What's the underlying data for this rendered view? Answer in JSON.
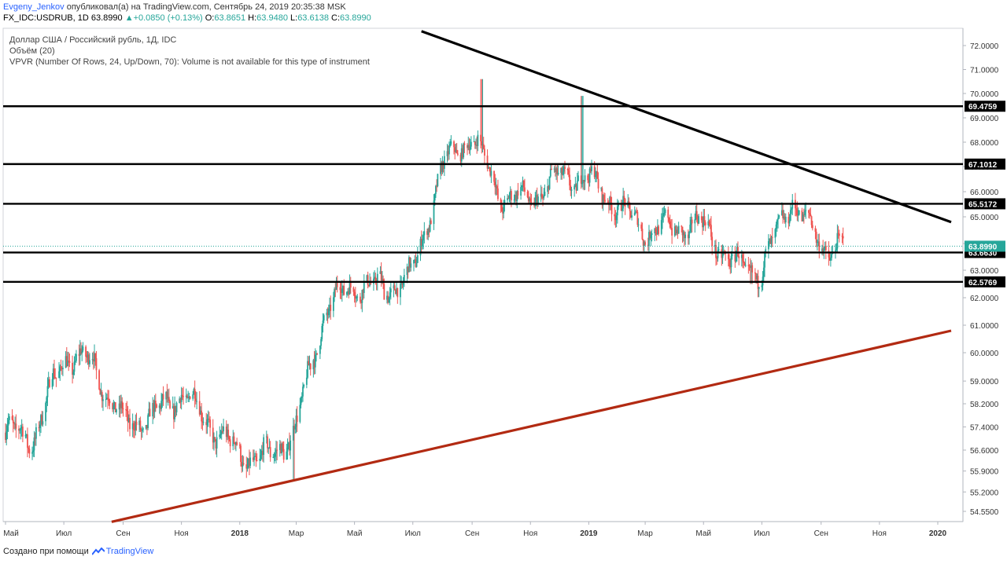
{
  "header": {
    "author": "Evgeny_Jenkov",
    "published": " опубликовал(а) на TradingView.com, Сентябрь 24, 2019 20:35:38 MSK",
    "symbol": "FX_IDC:USDRUB, 1D",
    "last": "63.8990",
    "change_arrow": "▲",
    "change": "+0.0850 (+0.13%)",
    "o_label": "O:",
    "o": "63.8651",
    "h_label": "H:",
    "h": "63.9480",
    "l_label": "L:",
    "l": "63.6138",
    "c_label": "C:",
    "c": "63.8990"
  },
  "legend": {
    "title": "Доллар США / Российский рубль, 1Д, IDC",
    "volume": "Объём (20)",
    "vpvr": "VPVR (Number Of Rows, 24, Up/Down, 70): Volume is not available for this type of instrument"
  },
  "footer": {
    "made_with": "Создано при помощи",
    "brand": "TradingView"
  },
  "colors": {
    "up": "#26a69a",
    "down": "#ef5350",
    "trendline_dark": "#000000",
    "trendline_red": "#b22a12",
    "last_price_line": "#26a69a",
    "axis_text": "#333333"
  },
  "chart_data": {
    "type": "candlestick",
    "y_axis_ticks": [
      "72.0000",
      "71.0000",
      "70.0000",
      "69.0000",
      "68.0000",
      "67.0000",
      "66.0000",
      "65.0000",
      "64.0000",
      "63.0000",
      "62.0000",
      "61.0000",
      "60.0000",
      "59.0000",
      "58.2000",
      "57.4000",
      "56.6000",
      "55.9000",
      "55.2000",
      "54.5500"
    ],
    "ylim": [
      54.2,
      72.6
    ],
    "x_axis_labels": [
      "Май",
      "Июл",
      "Сен",
      "Ноя",
      "2018",
      "Мар",
      "Май",
      "Июл",
      "Сен",
      "Ноя",
      "2019",
      "Мар",
      "Май",
      "Июл",
      "Сен",
      "Ноя",
      "2020"
    ],
    "x_range": [
      "2017-05",
      "2020-01"
    ],
    "series_path": [
      [
        "2017-05",
        57.2
      ],
      [
        "2017-06",
        57.1
      ],
      [
        "2017-07",
        59.9
      ],
      [
        "2017-08",
        59.6
      ],
      [
        "2017-09",
        57.5
      ],
      [
        "2017-10",
        57.7
      ],
      [
        "2017-11",
        58.6
      ],
      [
        "2017-12",
        57.5
      ],
      [
        "2018-01",
        56.4
      ],
      [
        "2018-02",
        56.3
      ],
      [
        "2018-03",
        57.4
      ],
      [
        "2018-04",
        61.6
      ],
      [
        "2018-05",
        62.5
      ],
      [
        "2018-06",
        62.3
      ],
      [
        "2018-07",
        62.8
      ],
      [
        "2018-08",
        67.0
      ],
      [
        "2018-09",
        68.3
      ],
      [
        "2018-10",
        65.8
      ],
      [
        "2018-11",
        65.7
      ],
      [
        "2018-12",
        66.6
      ],
      [
        "2019-01",
        66.5
      ],
      [
        "2019-02",
        65.4
      ],
      [
        "2019-03",
        64.5
      ],
      [
        "2019-04",
        64.6
      ],
      [
        "2019-05",
        64.7
      ],
      [
        "2019-06",
        63.2
      ],
      [
        "2019-07",
        63.0
      ],
      [
        "2019-08",
        65.7
      ],
      [
        "2019-09",
        63.9
      ]
    ],
    "extremes": [
      {
        "date": "2018-09-11",
        "high": 70.6
      },
      {
        "date": "2018-12-25",
        "high": 69.9
      },
      {
        "date": "2018-02-26",
        "low": 55.6
      },
      {
        "date": "2019-06-20",
        "low": 62.5
      }
    ],
    "horizontal_levels": [
      {
        "value": 69.4759,
        "label": "69.4759"
      },
      {
        "value": 67.1012,
        "label": "67.1012"
      },
      {
        "value": 65.5172,
        "label": "65.5172"
      },
      {
        "value": 63.663,
        "label": "63.6630"
      },
      {
        "value": 62.5769,
        "label": "62.5769"
      }
    ],
    "last_price": {
      "value": 63.899,
      "label": "63.8990"
    },
    "trendlines": [
      {
        "name": "resistance",
        "color": "#000000",
        "from": [
          "2018-07-10",
          72.6
        ],
        "to": [
          "2020-01-15",
          64.8
        ]
      },
      {
        "name": "support",
        "color": "#b22a12",
        "from": [
          "2017-08-20",
          54.2
        ],
        "to": [
          "2020-01-15",
          60.8
        ]
      }
    ]
  }
}
